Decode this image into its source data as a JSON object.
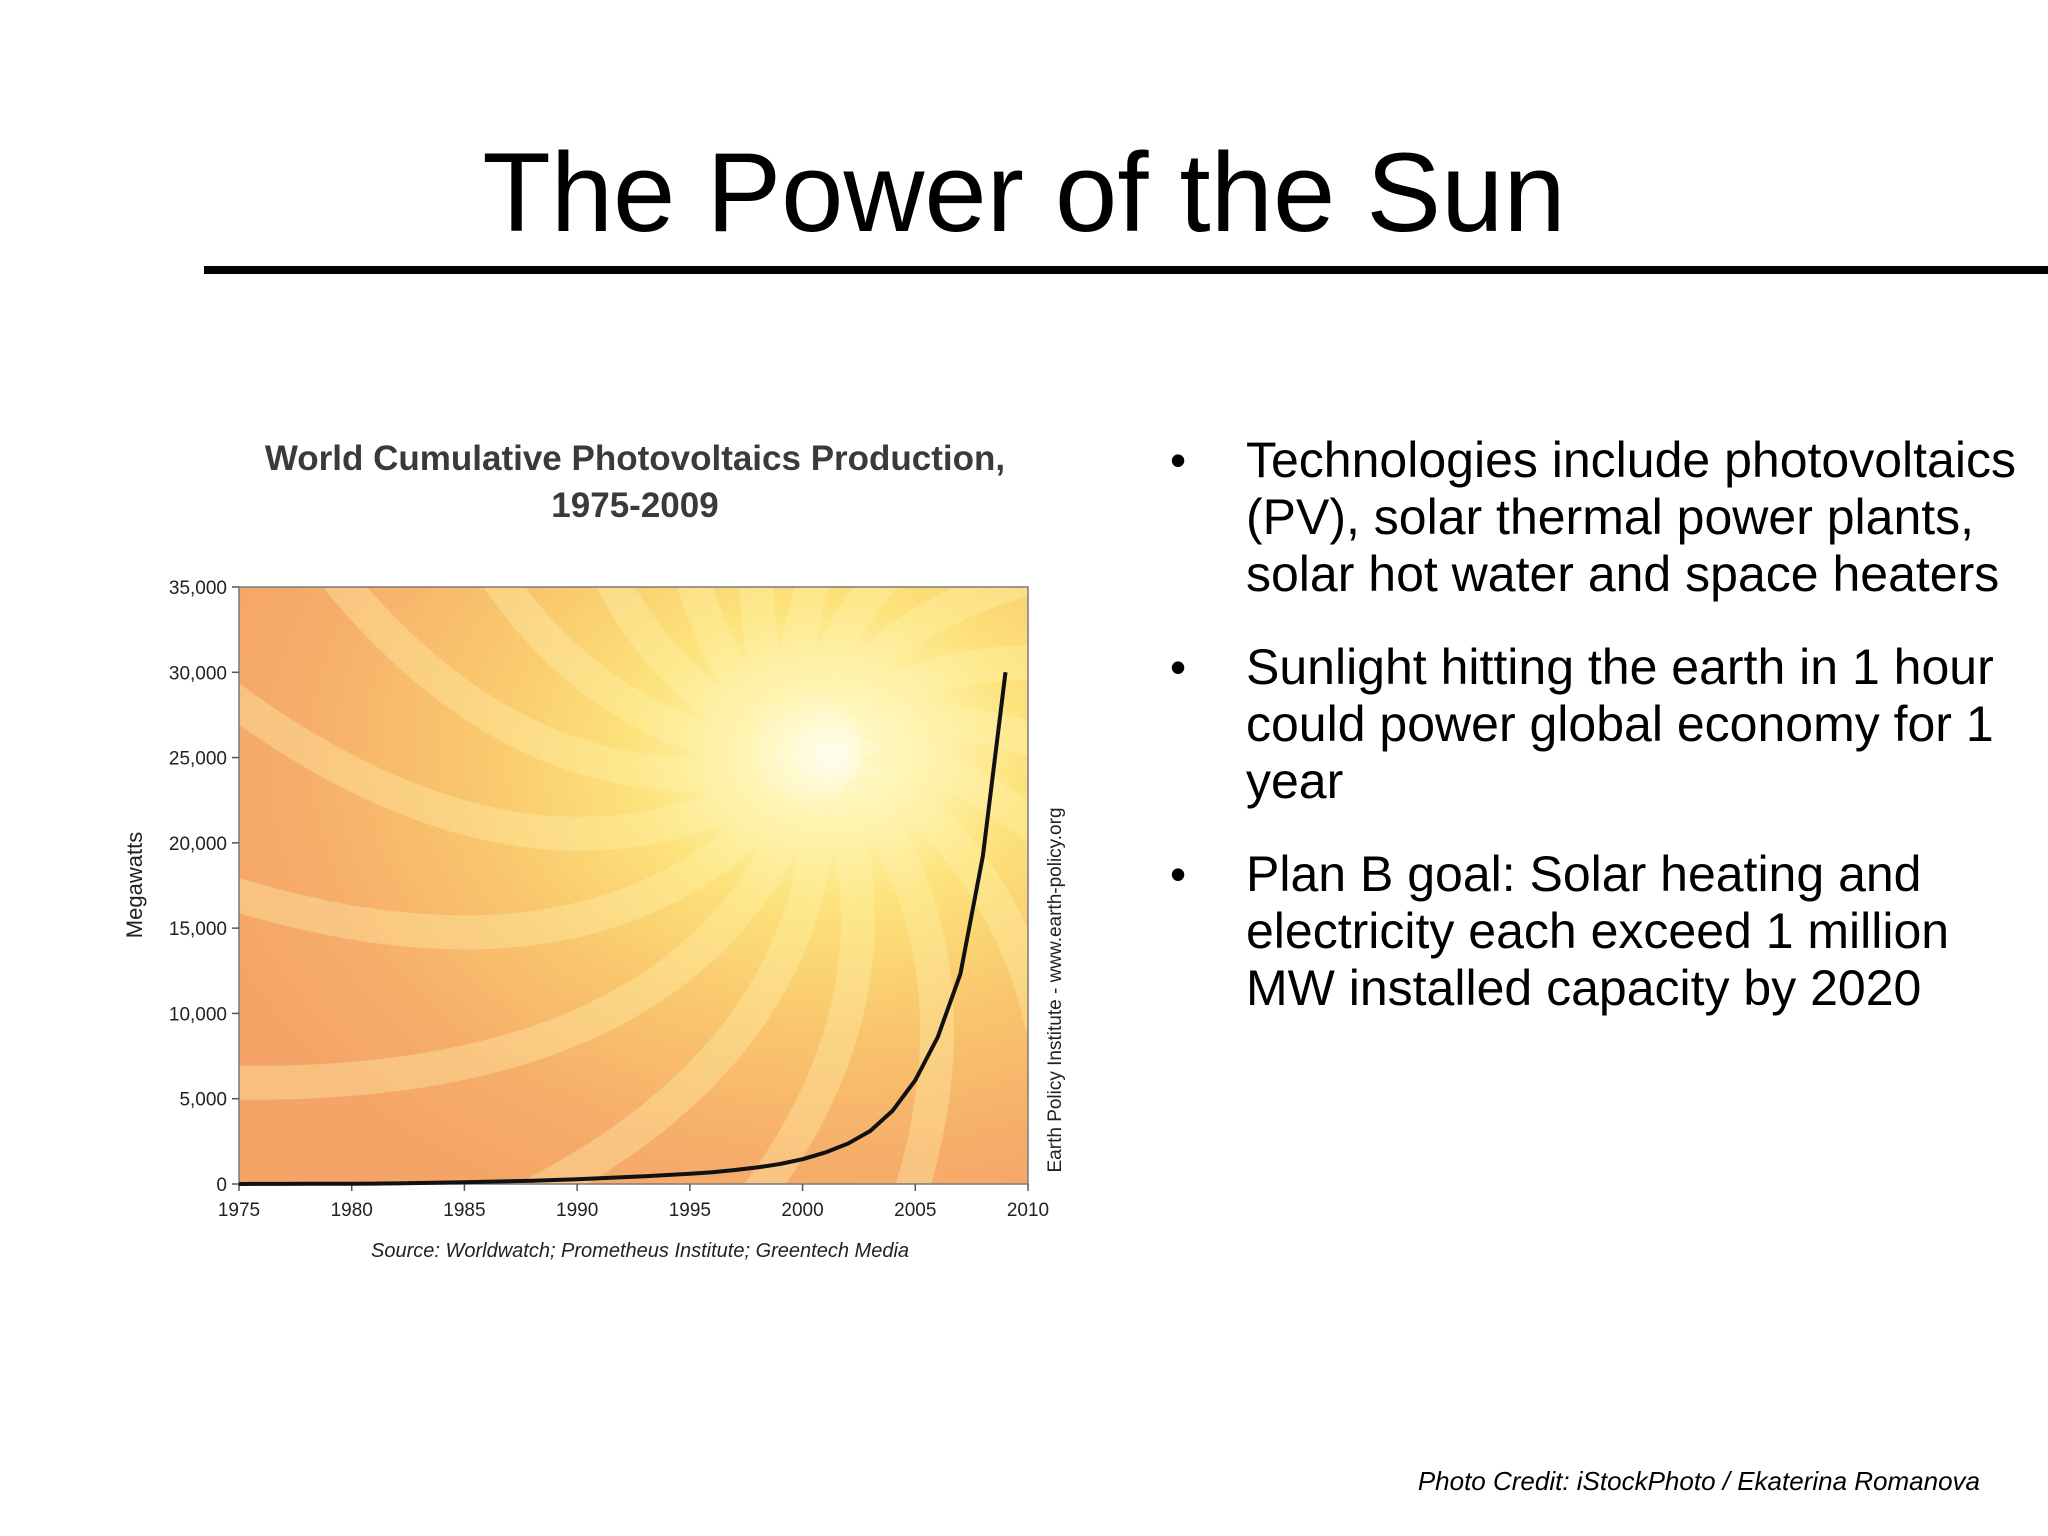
{
  "slide": {
    "title": "The Power of the Sun",
    "bullets": [
      "Technologies include photovoltaics (PV), solar thermal power plants, solar hot water and space heaters",
      "Sunlight hitting the earth in 1 hour could power global economy for 1 year",
      "Plan B goal: Solar heating and electricity each exceed 1 million MW installed capacity by 2020"
    ],
    "bullet_glyph": "•",
    "photo_credit": "Photo Credit: iStockPhoto / Ekaterina Romanova"
  },
  "chart_data": {
    "type": "line",
    "title": "World Cumulative Photovoltaics Production,",
    "title_line2": "1975-2009",
    "xlabel": "",
    "ylabel": "Megawatts",
    "source": "Source: Worldwatch; Prometheus Institute; Greentech Media",
    "side_note": "Earth Policy Institute - www.earth-policy.org",
    "xlim": [
      1975,
      2010
    ],
    "ylim": [
      0,
      35000
    ],
    "x_ticks": [
      1975,
      1980,
      1985,
      1990,
      1995,
      2000,
      2005,
      2010
    ],
    "y_ticks": [
      0,
      5000,
      10000,
      15000,
      20000,
      25000,
      30000,
      35000
    ],
    "y_tick_labels": [
      "0",
      "5,000",
      "10,000",
      "15,000",
      "20,000",
      "25,000",
      "30,000",
      "35,000"
    ],
    "grid": false,
    "line_color": "#111111",
    "series": [
      {
        "x": [
          1975,
          1976,
          1977,
          1978,
          1979,
          1980,
          1981,
          1982,
          1983,
          1984,
          1985,
          1986,
          1987,
          1988,
          1989,
          1990,
          1991,
          1992,
          1993,
          1994,
          1995,
          1996,
          1997,
          1998,
          1999,
          2000,
          2001,
          2002,
          2003,
          2004,
          2005,
          2006,
          2007,
          2008,
          2009
        ],
        "values": [
          2,
          4,
          6,
          9,
          13,
          19,
          26,
          35,
          57,
          82,
          105,
          130,
          160,
          195,
          235,
          282,
          337,
          395,
          456,
          525,
          604,
          693,
          819,
          974,
          1175,
          1452,
          1843,
          2364,
          3108,
          4303,
          6085,
          8620,
          12320,
          19234,
          30000
        ]
      }
    ]
  }
}
